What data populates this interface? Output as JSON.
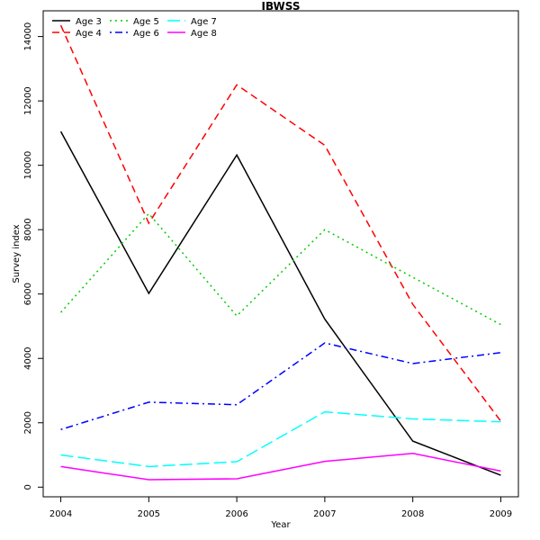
{
  "chart_data": {
    "type": "line",
    "title": "IBWSS",
    "xlabel": "Year",
    "ylabel": "Survey index",
    "x": [
      2004,
      2005,
      2006,
      2007,
      2008,
      2009
    ],
    "x_ticks": [
      "2004",
      "2005",
      "2006",
      "2007",
      "2008",
      "2009"
    ],
    "y_ticks": [
      "0",
      "2000",
      "4000",
      "6000",
      "8000",
      "10000",
      "12000",
      "14000"
    ],
    "xlim": [
      2003.8,
      2009.2
    ],
    "ylim": [
      -300,
      14800
    ],
    "grid": false,
    "legend_position": "top-left",
    "series": [
      {
        "name": "Age 3",
        "color": "#000000",
        "dash": "solid",
        "values": [
          11050,
          6020,
          10320,
          5220,
          1430,
          370
        ]
      },
      {
        "name": "Age 4",
        "color": "#ff0000",
        "dash": "dashed",
        "values": [
          14350,
          8200,
          12500,
          10620,
          5680,
          2050
        ]
      },
      {
        "name": "Age 5",
        "color": "#00cd00",
        "dash": "dotted",
        "values": [
          5430,
          8500,
          5320,
          8000,
          6520,
          5050
        ]
      },
      {
        "name": "Age 6",
        "color": "#0000ff",
        "dash": "dotdash",
        "values": [
          1790,
          2640,
          2560,
          4480,
          3840,
          4180
        ]
      },
      {
        "name": "Age 7",
        "color": "#00ffff",
        "dash": "longdash",
        "values": [
          1000,
          640,
          790,
          2340,
          2120,
          2030
        ]
      },
      {
        "name": "Age 8",
        "color": "#ff00ff",
        "dash": "solid",
        "values": [
          640,
          230,
          260,
          800,
          1050,
          500
        ]
      }
    ]
  }
}
